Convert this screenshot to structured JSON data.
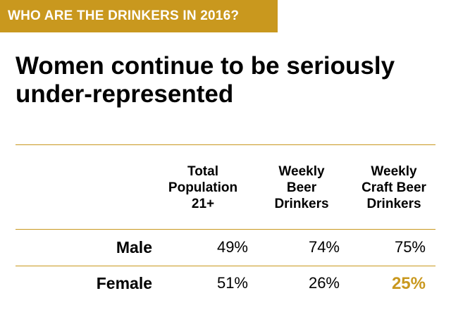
{
  "banner": {
    "text": "WHO ARE THE DRINKERS IN 2016?"
  },
  "headline": "Women continue to be seriously under-represented",
  "table": {
    "columns": [
      "Total\nPopulation\n21+",
      "Weekly\nBeer\nDrinkers",
      "Weekly\nCraft Beer\nDrinkers"
    ],
    "rows": [
      {
        "label": "Male",
        "values": [
          "49%",
          "74%",
          "75%"
        ]
      },
      {
        "label": "Female",
        "values": [
          "51%",
          "26%",
          "25%"
        ]
      }
    ]
  },
  "colors": {
    "accent": "#c9981e",
    "text": "#000000",
    "banner_text": "#ffffff"
  }
}
